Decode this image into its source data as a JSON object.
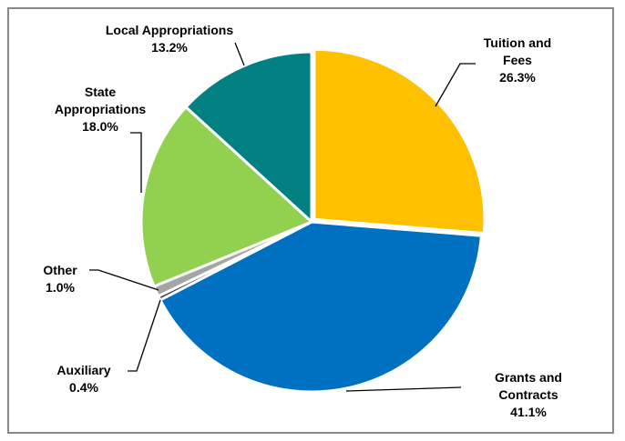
{
  "chart_data": {
    "type": "pie",
    "slices": [
      {
        "label_lines": [
          "Tuition and",
          "Fees"
        ],
        "value": 26.3,
        "value_text": "26.3%",
        "color": "#FFC000"
      },
      {
        "label_lines": [
          "Grants and",
          "Contracts"
        ],
        "value": 41.1,
        "value_text": "41.1%",
        "color": "#0070C0"
      },
      {
        "label_lines": [
          "Auxiliary"
        ],
        "value": 0.4,
        "value_text": "0.4%",
        "color": "#1F3864"
      },
      {
        "label_lines": [
          "Other"
        ],
        "value": 1.0,
        "value_text": "1.0%",
        "color": "#A5A5A5"
      },
      {
        "label_lines": [
          "State",
          "Appropriations"
        ],
        "value": 18.0,
        "value_text": "18.0%",
        "color": "#92D050"
      },
      {
        "label_lines": [
          "Local Appropriations"
        ],
        "value": 13.2,
        "value_text": "13.2%",
        "color": "#008080"
      }
    ],
    "start_angle_deg": 0,
    "direction": "clockwise",
    "exploded_slice": "Tuition and Fees",
    "legend": "none"
  }
}
